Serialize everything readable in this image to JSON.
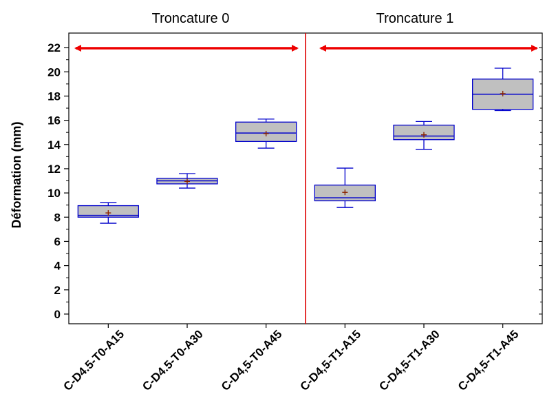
{
  "chart_data": {
    "type": "box",
    "ylabel": "Déformation (mm)",
    "ylim": [
      -0.8,
      23.2
    ],
    "yticks": [
      0,
      2,
      4,
      6,
      8,
      10,
      12,
      14,
      16,
      18,
      20,
      22
    ],
    "groups": [
      {
        "label": "Troncature 0"
      },
      {
        "label": "Troncature 1"
      }
    ],
    "categories": [
      "C-D4.5-T0-A15",
      "C-D4.5-T0-A30",
      "C-D4,5-T0-A45",
      "C-D4,5-T1-A15",
      "C-D4,5-T1-A30",
      "C-D4,5-T1-A45"
    ],
    "boxes": [
      {
        "min": 7.5,
        "q1": 8.0,
        "median": 8.15,
        "q3": 8.95,
        "max": 9.2,
        "mean": 8.35
      },
      {
        "min": 10.4,
        "q1": 10.75,
        "median": 11.0,
        "q3": 11.2,
        "max": 11.6,
        "mean": 10.95
      },
      {
        "min": 13.7,
        "q1": 14.25,
        "median": 14.95,
        "q3": 15.85,
        "max": 16.1,
        "mean": 14.9
      },
      {
        "min": 8.8,
        "q1": 9.35,
        "median": 9.6,
        "q3": 10.65,
        "max": 12.05,
        "mean": 10.05
      },
      {
        "min": 13.6,
        "q1": 14.4,
        "median": 14.7,
        "q3": 15.6,
        "max": 15.9,
        "mean": 14.8
      },
      {
        "min": 16.8,
        "q1": 16.9,
        "median": 18.15,
        "q3": 19.4,
        "max": 20.3,
        "mean": 18.2
      }
    ],
    "colors": {
      "box_fill": "#c0c0c0",
      "box_stroke": "#0000cc",
      "mean_marker": "#8b2500",
      "divider": "#dd0000",
      "arrow": "#ee0000",
      "axis": "#000000"
    }
  }
}
